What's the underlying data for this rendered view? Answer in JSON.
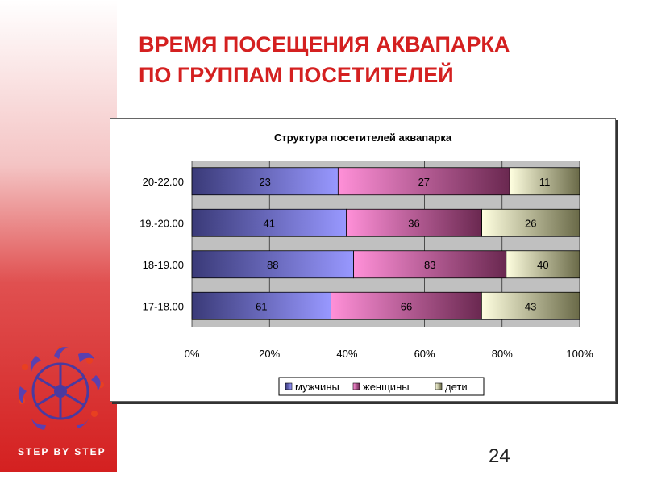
{
  "slide": {
    "title_line1": "ВРЕМЯ ПОСЕЩЕНИЯ АКВАПАРКА",
    "title_line2": "ПО ГРУППАМ ПОСЕТИТЕЛЕЙ",
    "page_number": "24",
    "logo_text": "STEP BY STEP",
    "accent_color": "#d42020"
  },
  "chart_data": {
    "type": "bar",
    "orientation": "horizontal",
    "stacked": "percent",
    "title": "Структура посетителей аквапарка",
    "categories": [
      "20-22.00",
      "19.-20.00",
      "18-19.00",
      "17-18.00"
    ],
    "series": [
      {
        "name": "мужчины",
        "values": [
          23,
          41,
          88,
          61
        ],
        "color": "#8080e0"
      },
      {
        "name": "женщины",
        "values": [
          27,
          36,
          83,
          66
        ],
        "color": "#e070c0"
      },
      {
        "name": "дети",
        "values": [
          11,
          26,
          40,
          43
        ],
        "color": "#f0f0c0"
      }
    ],
    "x_ticks": [
      "0%",
      "20%",
      "40%",
      "60%",
      "80%",
      "100%"
    ],
    "xlim": [
      0,
      100
    ],
    "grid": true,
    "legend": "bottom"
  }
}
